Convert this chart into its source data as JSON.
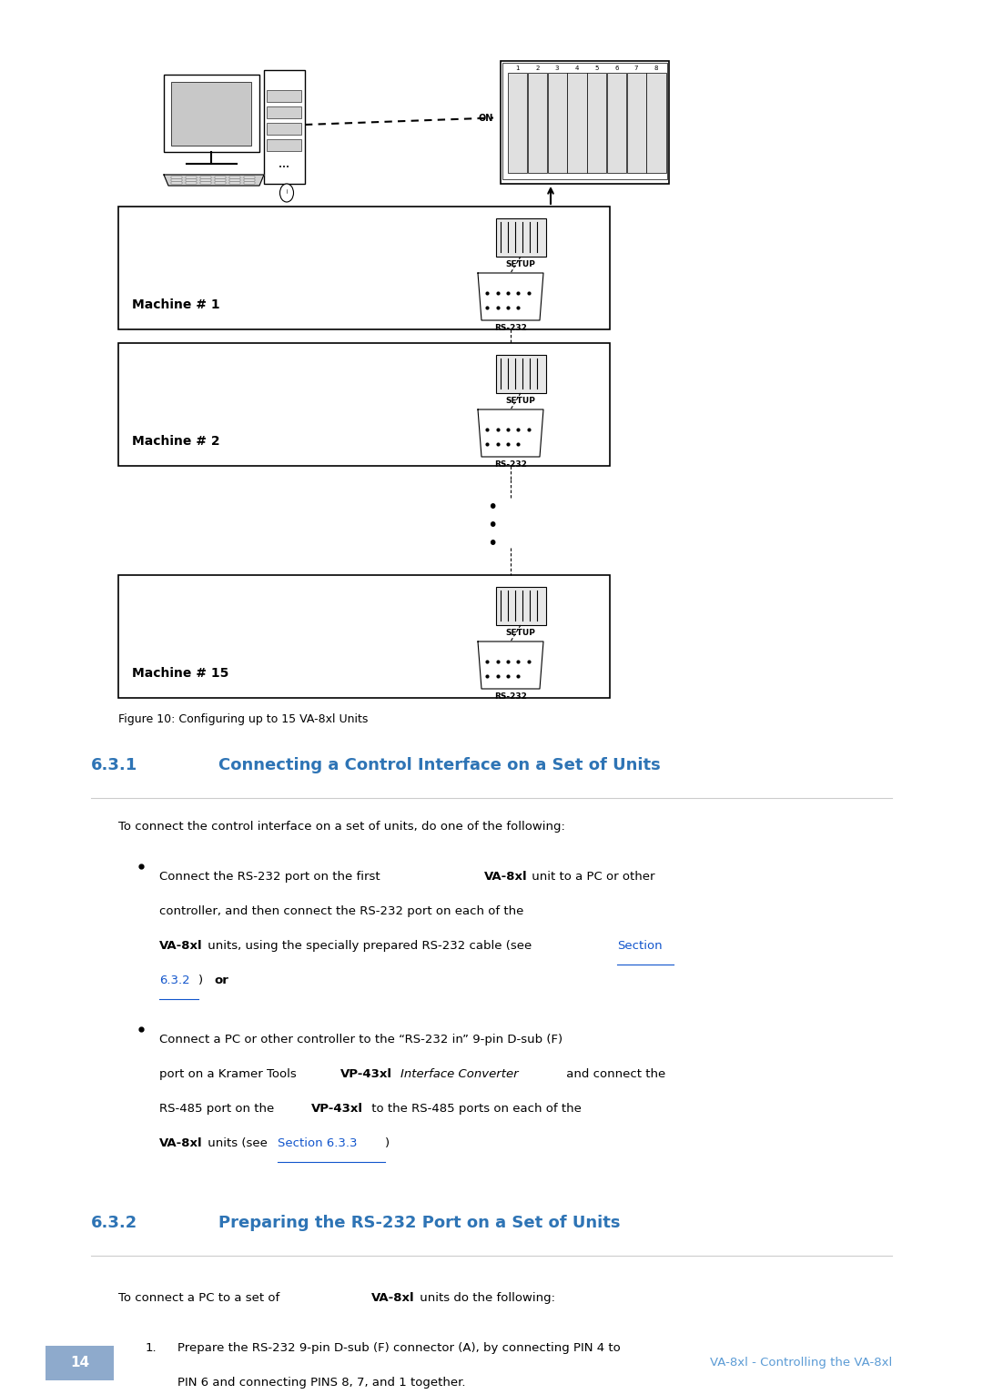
{
  "bg_color": "#ffffff",
  "page_width": 10.8,
  "page_height": 15.32,
  "heading_color": "#2e74b5",
  "link_color": "#1155CC",
  "text_color": "#000000",
  "footer_bg": "#8eaacc",
  "footer_text_color": "#ffffff",
  "section_631_number": "6.3.1",
  "section_631_title": "Connecting a Control Interface on a Set of Units",
  "section_632_number": "6.3.2",
  "section_632_title": "Preparing the RS-232 Port on a Set of Units",
  "figure_caption": "Figure 10: Configuring up to 15 VA-8xl Units",
  "page_number": "14",
  "footer_right_text": "VA-8xl - Controlling the VA-8xl"
}
